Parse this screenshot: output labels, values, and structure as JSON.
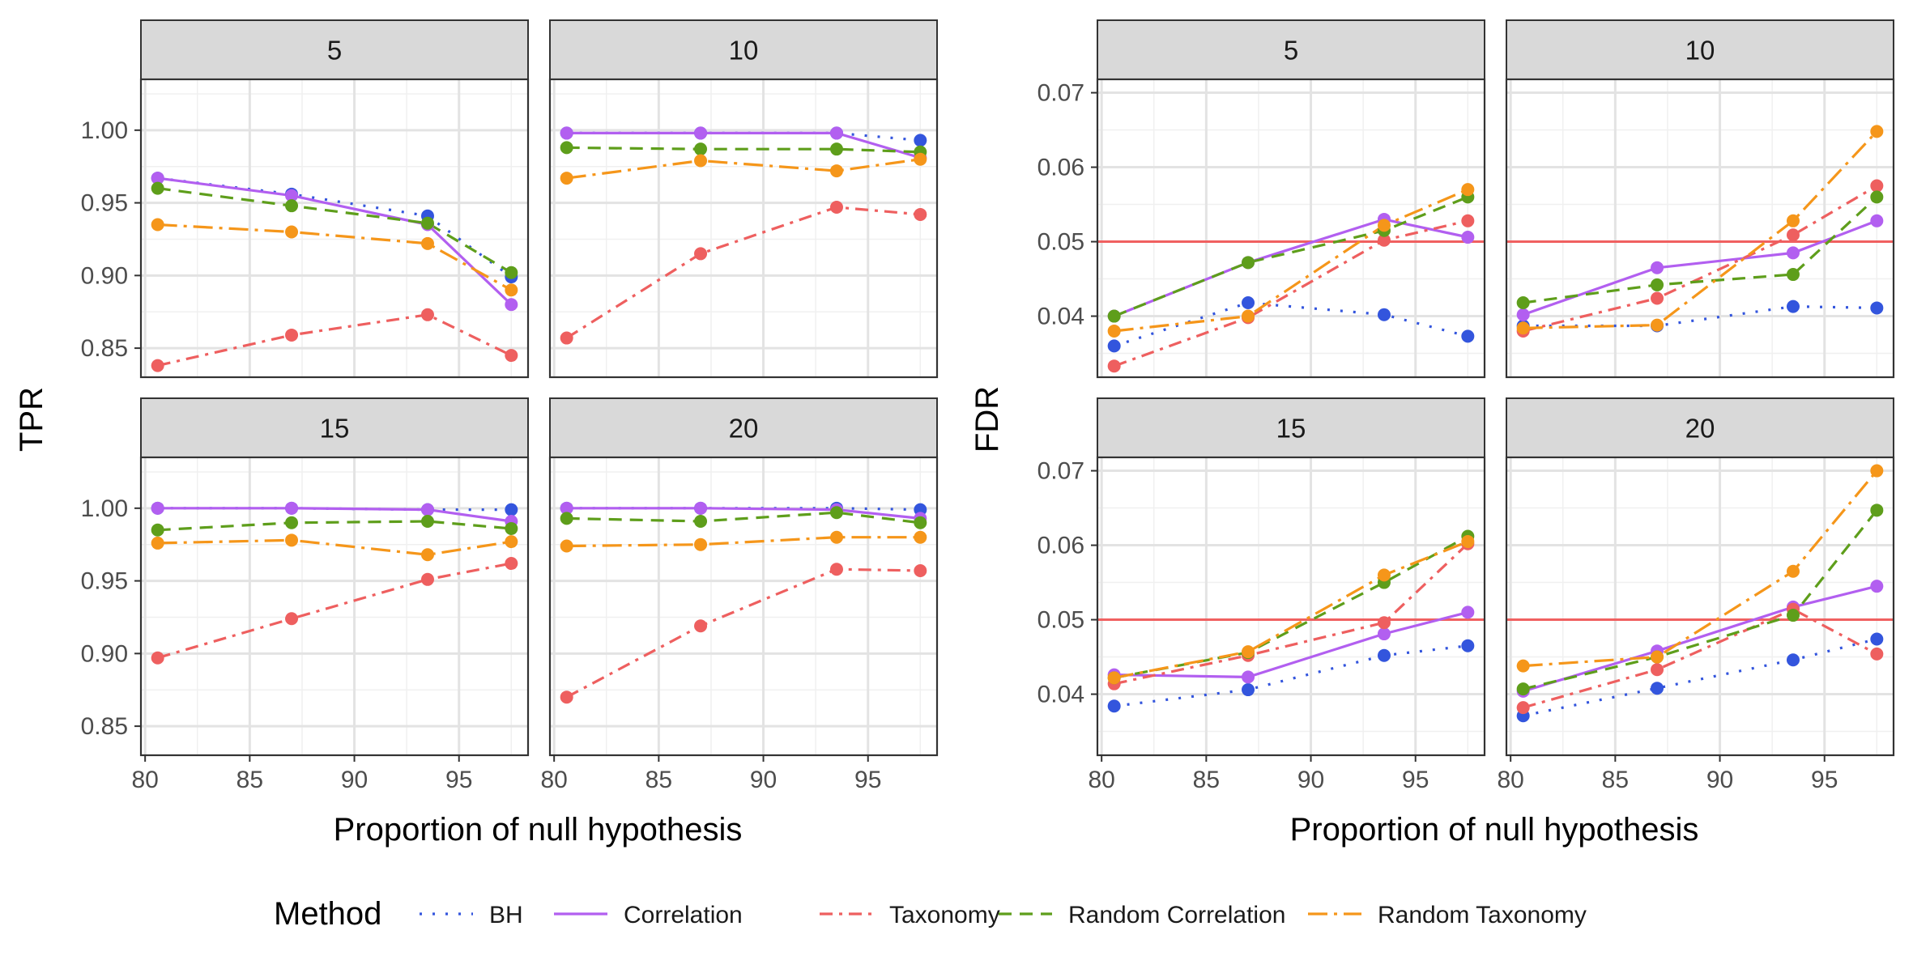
{
  "colors": {
    "BH": "#3355dd",
    "Correlation": "#b25ff0",
    "Taxonomy": "#ee5f5f",
    "Random Correlation": "#5e9e1b",
    "Random Taxonomy": "#f5961a",
    "reference_line": "#f06060"
  },
  "legend": {
    "title": "Method",
    "entries": [
      "BH",
      "Correlation",
      "Taxonomy",
      "Random Correlation",
      "Random Taxonomy"
    ]
  },
  "chart_data": [
    {
      "type": "line",
      "ylabel": "TPR",
      "xlabel": "Proportion of null hypothesis",
      "x": [
        80.6,
        87.0,
        93.5,
        97.5
      ],
      "x_ticks": [
        80,
        85,
        90,
        95
      ],
      "xlim": [
        79.8,
        98.3
      ],
      "y_ticks": [
        0.85,
        0.9,
        0.95,
        1.0
      ],
      "y_tick_labels": [
        "0.85",
        "0.90",
        "0.95",
        "1.00"
      ],
      "ylim": [
        0.83,
        1.035
      ],
      "grid": true,
      "facets": [
        {
          "label": "5",
          "series": [
            {
              "name": "BH",
              "values": [
                0.967,
                0.956,
                0.941,
                0.899
              ]
            },
            {
              "name": "Correlation",
              "values": [
                0.967,
                0.955,
                0.935,
                0.88
              ]
            },
            {
              "name": "Taxonomy",
              "values": [
                0.838,
                0.859,
                0.873,
                0.845
              ]
            },
            {
              "name": "Random Correlation",
              "values": [
                0.96,
                0.948,
                0.936,
                0.902
              ]
            },
            {
              "name": "Random Taxonomy",
              "values": [
                0.935,
                0.93,
                0.922,
                0.89
              ]
            }
          ]
        },
        {
          "label": "10",
          "series": [
            {
              "name": "BH",
              "values": [
                0.998,
                0.998,
                0.998,
                0.993
              ]
            },
            {
              "name": "Correlation",
              "values": [
                0.998,
                0.998,
                0.998,
                0.981
              ]
            },
            {
              "name": "Taxonomy",
              "values": [
                0.857,
                0.915,
                0.947,
                0.942
              ]
            },
            {
              "name": "Random Correlation",
              "values": [
                0.988,
                0.987,
                0.987,
                0.985
              ]
            },
            {
              "name": "Random Taxonomy",
              "values": [
                0.967,
                0.979,
                0.972,
                0.98
              ]
            }
          ]
        },
        {
          "label": "15",
          "series": [
            {
              "name": "BH",
              "values": [
                1.0,
                1.0,
                0.999,
                0.999
              ]
            },
            {
              "name": "Correlation",
              "values": [
                1.0,
                1.0,
                0.999,
                0.991
              ]
            },
            {
              "name": "Taxonomy",
              "values": [
                0.897,
                0.924,
                0.951,
                0.962
              ]
            },
            {
              "name": "Random Correlation",
              "values": [
                0.985,
                0.99,
                0.991,
                0.986
              ]
            },
            {
              "name": "Random Taxonomy",
              "values": [
                0.976,
                0.978,
                0.968,
                0.977
              ]
            }
          ]
        },
        {
          "label": "20",
          "series": [
            {
              "name": "BH",
              "values": [
                1.0,
                1.0,
                1.0,
                0.999
              ]
            },
            {
              "name": "Correlation",
              "values": [
                1.0,
                1.0,
                0.999,
                0.993
              ]
            },
            {
              "name": "Taxonomy",
              "values": [
                0.87,
                0.919,
                0.958,
                0.957
              ]
            },
            {
              "name": "Random Correlation",
              "values": [
                0.993,
                0.991,
                0.997,
                0.99
              ]
            },
            {
              "name": "Random Taxonomy",
              "values": [
                0.974,
                0.975,
                0.98,
                0.98
              ]
            }
          ]
        }
      ]
    },
    {
      "type": "line",
      "ylabel": "FDR",
      "xlabel": "Proportion of null hypothesis",
      "x": [
        80.6,
        87.0,
        93.5,
        97.5
      ],
      "x_ticks": [
        80,
        85,
        90,
        95
      ],
      "xlim": [
        79.8,
        98.3
      ],
      "y_ticks": [
        0.04,
        0.05,
        0.06,
        0.07
      ],
      "y_tick_labels": [
        "0.04",
        "0.05",
        "0.06",
        "0.07"
      ],
      "ylim": [
        0.0318,
        0.0718
      ],
      "reference_line_y": 0.05,
      "grid": true,
      "facets": [
        {
          "label": "5",
          "series": [
            {
              "name": "BH",
              "values": [
                0.036,
                0.0418,
                0.0402,
                0.0373
              ]
            },
            {
              "name": "Correlation",
              "values": [
                0.04,
                0.0472,
                0.053,
                0.0506
              ]
            },
            {
              "name": "Taxonomy",
              "values": [
                0.0333,
                0.0398,
                0.0502,
                0.0528
              ]
            },
            {
              "name": "Random Correlation",
              "values": [
                0.04,
                0.0472,
                0.0515,
                0.056
              ]
            },
            {
              "name": "Random Taxonomy",
              "values": [
                0.038,
                0.04,
                0.0522,
                0.057
              ]
            }
          ]
        },
        {
          "label": "10",
          "series": [
            {
              "name": "BH",
              "values": [
                0.0387,
                0.0387,
                0.0413,
                0.0411
              ]
            },
            {
              "name": "Correlation",
              "values": [
                0.0402,
                0.0465,
                0.0485,
                0.0528
              ]
            },
            {
              "name": "Taxonomy",
              "values": [
                0.038,
                0.0424,
                0.0509,
                0.0575
              ]
            },
            {
              "name": "Random Correlation",
              "values": [
                0.0418,
                0.0442,
                0.0456,
                0.056
              ]
            },
            {
              "name": "Random Taxonomy",
              "values": [
                0.0384,
                0.0388,
                0.0528,
                0.0648
              ]
            }
          ]
        },
        {
          "label": "15",
          "series": [
            {
              "name": "BH",
              "values": [
                0.0384,
                0.0406,
                0.0452,
                0.0465
              ]
            },
            {
              "name": "Correlation",
              "values": [
                0.0426,
                0.0423,
                0.0481,
                0.051
              ]
            },
            {
              "name": "Taxonomy",
              "values": [
                0.0414,
                0.0452,
                0.0496,
                0.0602
              ]
            },
            {
              "name": "Random Correlation",
              "values": [
                0.0422,
                0.0456,
                0.055,
                0.0612
              ]
            },
            {
              "name": "Random Taxonomy",
              "values": [
                0.0422,
                0.0457,
                0.056,
                0.0605
              ]
            }
          ]
        },
        {
          "label": "20",
          "series": [
            {
              "name": "BH",
              "values": [
                0.0371,
                0.0408,
                0.0446,
                0.0474
              ]
            },
            {
              "name": "Correlation",
              "values": [
                0.0404,
                0.0458,
                0.0517,
                0.0545
              ]
            },
            {
              "name": "Taxonomy",
              "values": [
                0.0382,
                0.0433,
                0.0514,
                0.0454
              ]
            },
            {
              "name": "Random Correlation",
              "values": [
                0.0407,
                0.045,
                0.0506,
                0.0647
              ]
            },
            {
              "name": "Random Taxonomy",
              "values": [
                0.0438,
                0.045,
                0.0565,
                0.07
              ]
            }
          ]
        }
      ]
    }
  ]
}
